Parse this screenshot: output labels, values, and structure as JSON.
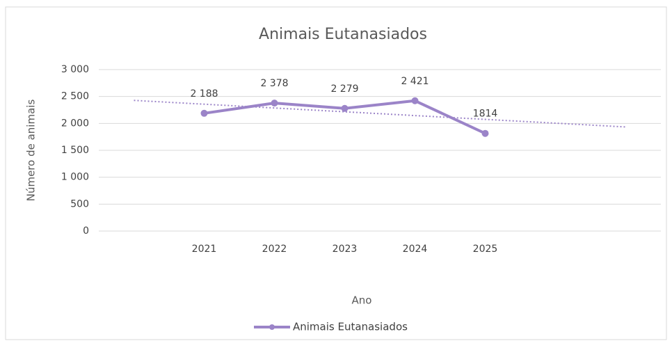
{
  "chart_data": {
    "type": "line",
    "title": "Animais Eutanasiados",
    "x_label": "Ano",
    "y_label": "Número de animais",
    "categories": [
      null,
      "2021",
      "2022",
      "2023",
      "2024",
      "2025",
      null,
      null
    ],
    "series": [
      {
        "name": "Animais Eutanasiados",
        "color": "#9b84c8",
        "values": [
          null,
          2188,
          2378,
          2279,
          2421,
          1814,
          null,
          null
        ],
        "value_labels": [
          null,
          "2 188",
          "2 378",
          "2 279",
          "2 421",
          "1814",
          null,
          null
        ]
      }
    ],
    "trendline": "linear",
    "ylim": [
      0,
      3000
    ],
    "yticks": [
      0,
      500,
      {
        "value": 1000,
        "label": "1 000"
      },
      {
        "value": 1500,
        "label": "1 500"
      },
      {
        "value": 2000,
        "label": "2 000"
      },
      {
        "value": 2500,
        "label": "2 500"
      },
      {
        "value": 3000,
        "label": "3 000"
      }
    ],
    "grid": true,
    "legend": "bottom"
  }
}
